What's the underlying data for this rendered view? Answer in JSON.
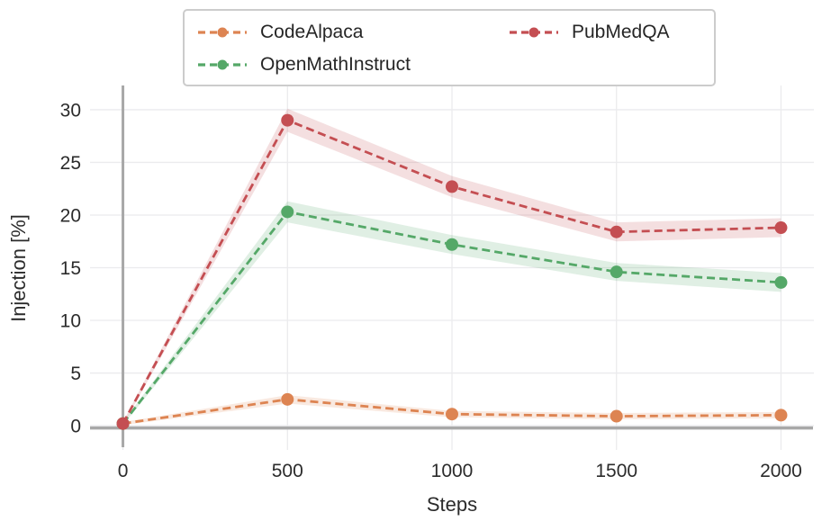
{
  "chart_data": {
    "type": "line",
    "title": "",
    "xlabel": "Steps",
    "ylabel": "Injection [%]",
    "x": [
      0,
      500,
      1000,
      1500,
      2000
    ],
    "xticks": [
      0,
      500,
      1000,
      1500,
      2000
    ],
    "yticks": [
      0,
      5,
      10,
      15,
      20,
      25,
      30
    ],
    "xlim": [
      -100,
      2100
    ],
    "ylim": [
      -2.3,
      32.3
    ],
    "grid": true,
    "legend_position": "upper center, outside axes, 2 columns",
    "line_style": "dashed with circle markers and shaded confidence bands",
    "series": [
      {
        "name": "CodeAlpaca",
        "color": "#dd8452",
        "values": [
          0.2,
          2.5,
          1.1,
          0.9,
          1.0
        ],
        "ci": [
          0.15,
          0.4,
          0.3,
          0.3,
          0.3
        ]
      },
      {
        "name": "OpenMathInstruct",
        "color": "#55a868",
        "values": [
          0.2,
          20.3,
          17.2,
          14.6,
          13.6
        ],
        "ci": [
          0.15,
          1.0,
          0.9,
          0.85,
          0.9
        ]
      },
      {
        "name": "PubMedQA",
        "color": "#c44e52",
        "values": [
          0.2,
          29.0,
          22.7,
          18.4,
          18.8
        ],
        "ci": [
          0.15,
          1.1,
          1.0,
          0.9,
          0.9
        ]
      }
    ]
  },
  "style": {
    "grid_color": "#ebebed",
    "zero_line_color": "#a8a8a8",
    "text_color": "#2b2b2b",
    "band_opacity": 0.18
  }
}
